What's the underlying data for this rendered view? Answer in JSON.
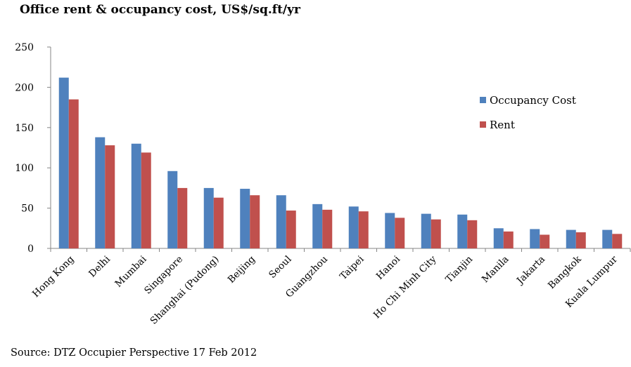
{
  "chart_data": {
    "type": "bar",
    "title": "Office rent & occupancy cost, US$/sq.ft/yr",
    "xlabel": "",
    "ylabel": "",
    "ylim": [
      0,
      250
    ],
    "yticks": [
      0,
      50,
      100,
      150,
      200,
      250
    ],
    "grid": false,
    "legend_position": "right",
    "categories": [
      "Hong Kong",
      "Delhi",
      "Mumbai",
      "Singapore",
      "Shanghai (Pudong)",
      "Beijing",
      "Seoul",
      "Guangzhou",
      "Taipei",
      "Hanoi",
      "Ho Chi Minh City",
      "Tianjin",
      "Manila",
      "Jakarta",
      "Bangkok",
      "Kuala Lumpur"
    ],
    "series": [
      {
        "name": "Occupancy Cost",
        "color": "#4f81bd",
        "values": [
          212,
          138,
          130,
          96,
          75,
          74,
          66,
          55,
          52,
          44,
          43,
          42,
          25,
          24,
          23,
          23
        ]
      },
      {
        "name": "Rent",
        "color": "#c0504d",
        "values": [
          185,
          128,
          119,
          75,
          63,
          66,
          47,
          48,
          46,
          38,
          36,
          35,
          21,
          17,
          20,
          18
        ]
      }
    ],
    "source": "Source: DTZ Occupier Perspective 17 Feb 2012"
  }
}
